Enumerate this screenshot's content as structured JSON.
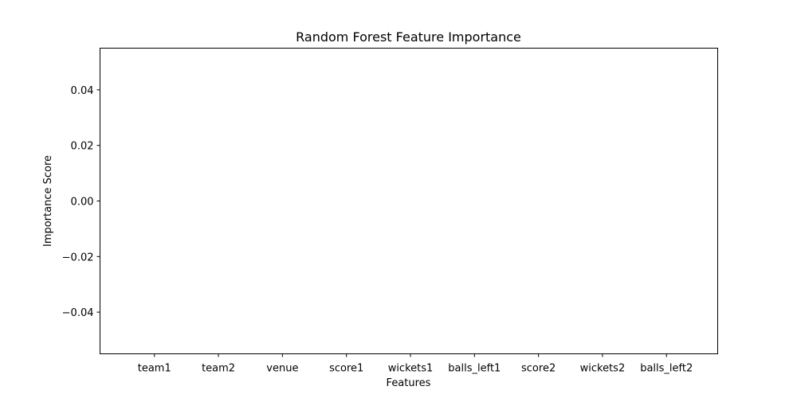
{
  "chart_data": {
    "type": "bar",
    "title": "Random Forest Feature Importance",
    "xlabel": "Features",
    "ylabel": "Importance Score",
    "categories": [
      "team1",
      "team2",
      "venue",
      "score1",
      "wickets1",
      "balls_left1",
      "score2",
      "wickets2",
      "balls_left2"
    ],
    "values": [
      0,
      0,
      0,
      0,
      0,
      0,
      0,
      0,
      0
    ],
    "ylim": [
      -0.055,
      0.055
    ],
    "yticks": [
      0.04,
      0.02,
      0.0,
      -0.02,
      -0.04
    ],
    "ytick_labels": [
      "0.04",
      "0.02",
      "0.00",
      "−0.02",
      "−0.04"
    ],
    "bar_color": "#1f77b4",
    "grid": false
  }
}
